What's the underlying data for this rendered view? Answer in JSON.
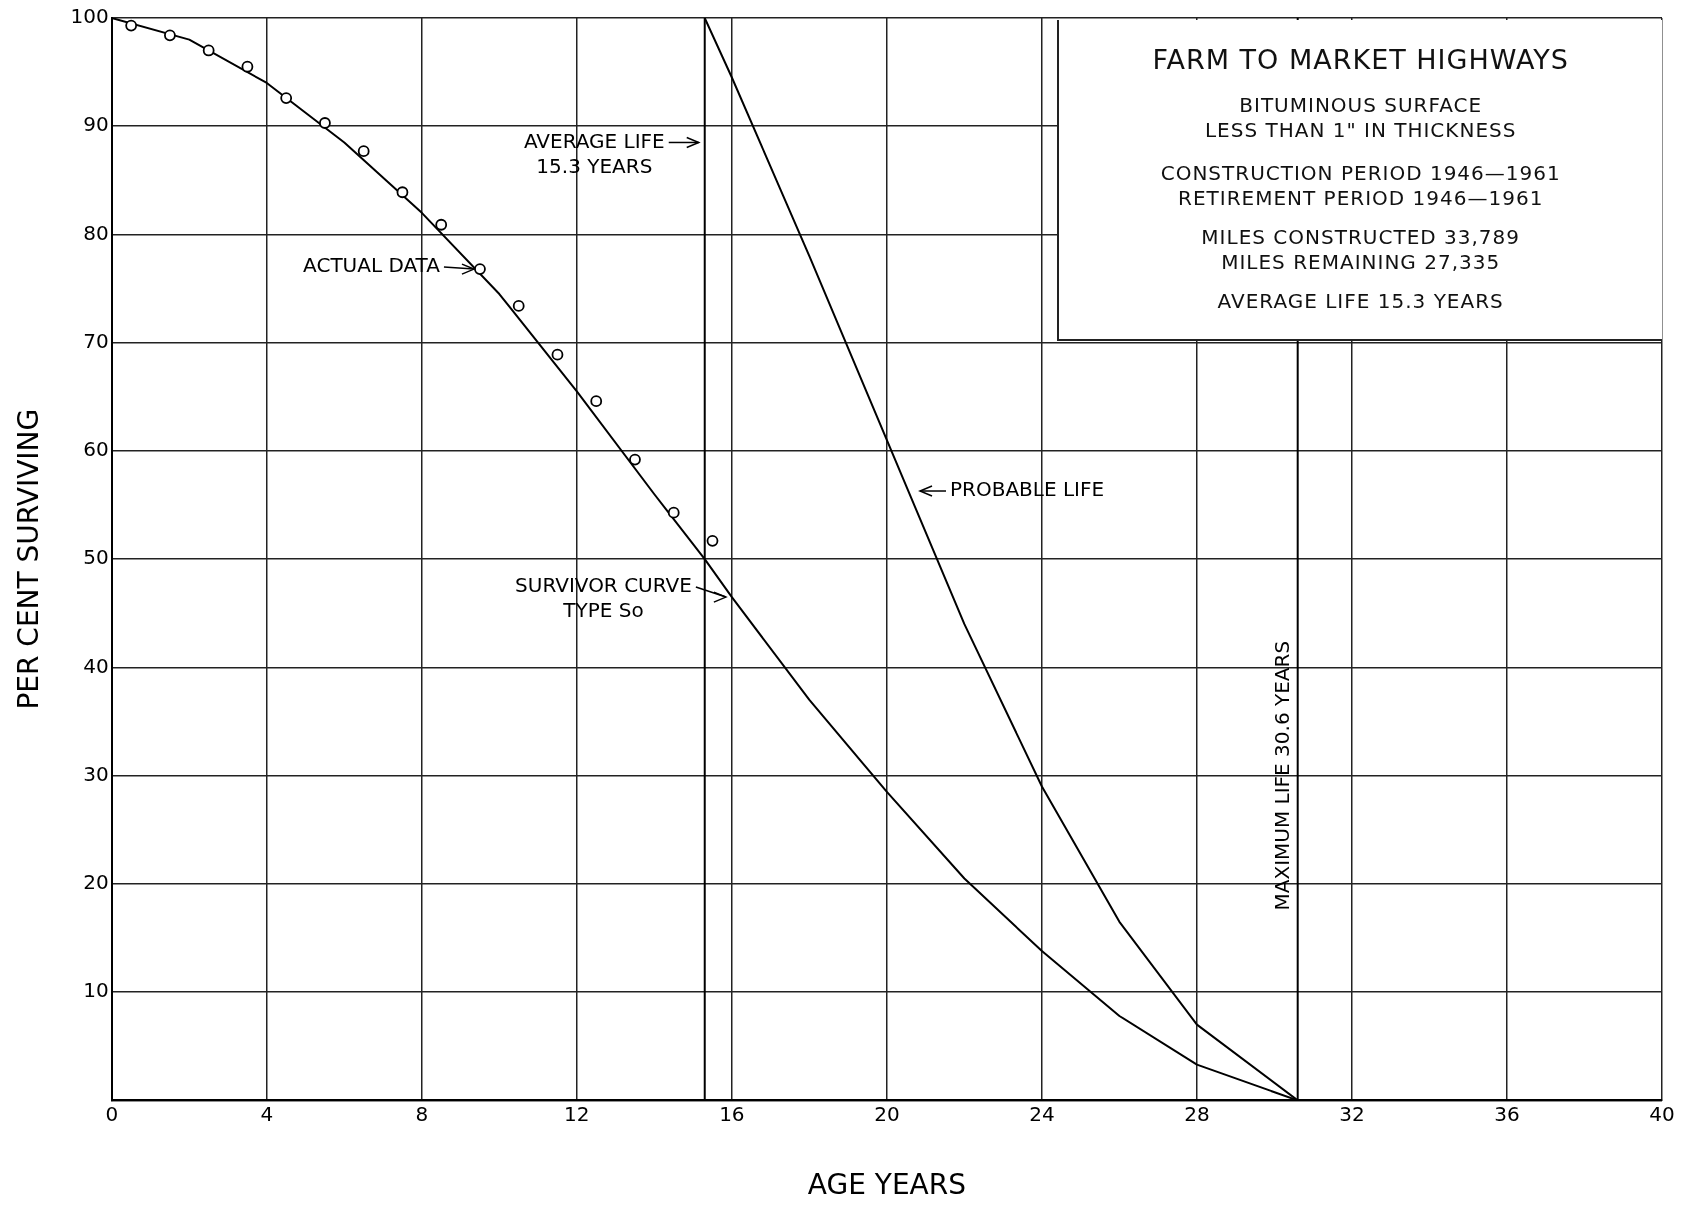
{
  "chart_data": {
    "type": "line",
    "title": "FARM TO MARKET HIGHWAYS",
    "subtitle": "BITUMINOUS SURFACE\nLESS THAN 1\" IN THICKNESS",
    "xlabel": "AGE YEARS",
    "ylabel": "PER CENT SURVIVING",
    "xlim": [
      0,
      40
    ],
    "xticks": [
      0,
      4,
      8,
      12,
      16,
      20,
      24,
      28,
      32,
      36,
      40
    ],
    "ylim": [
      0,
      100
    ],
    "yticks": [
      {
        "value": 0,
        "label": null
      },
      10,
      20,
      30,
      40,
      50,
      60,
      70,
      80,
      90,
      100
    ],
    "grid": true,
    "legend": false,
    "series": [
      {
        "type": "scatter",
        "marker": "circle",
        "color": "#000000",
        "x": [
          0.5,
          1.5,
          2.5,
          3.5,
          4.5,
          5.5,
          6.5,
          7.5,
          8.5,
          9.5,
          10.5,
          11.5,
          12.5,
          13.5,
          14.5,
          15.5
        ],
        "values": [
          99.3,
          98.4,
          97.0,
          95.5,
          92.6,
          90.3,
          87.7,
          83.9,
          80.9,
          76.8,
          73.4,
          68.9,
          64.6,
          59.2,
          54.3,
          51.7
        ]
      },
      {
        "type": "line",
        "marker": "none",
        "line_style": "solid",
        "color": "#000000",
        "x": [
          0,
          2,
          4,
          6,
          8,
          10,
          12,
          14,
          15.3,
          16,
          18,
          20,
          22,
          24,
          26,
          28,
          30.6
        ],
        "values": [
          100,
          98,
          94,
          88.5,
          82,
          74.5,
          65.5,
          56,
          50,
          46.5,
          37,
          28.5,
          20.5,
          13.8,
          7.8,
          3.3,
          0
        ]
      },
      {
        "type": "line",
        "marker": "none",
        "line_style": "solid",
        "color": "#000000",
        "x": [
          15.3,
          16,
          18,
          20,
          22,
          24,
          26,
          28,
          30.6
        ],
        "values": [
          100,
          94.5,
          78,
          61,
          44,
          29,
          16.5,
          7,
          0
        ]
      }
    ],
    "ref_lines": [
      {
        "axis": "x",
        "value": 15.3,
        "label": null,
        "color": "#000000"
      },
      {
        "axis": "x",
        "value": 30.6,
        "label": "MAXIMUM LIFE 30.6 YEARS",
        "color": "#000000"
      }
    ],
    "annotations": [
      {
        "text": "AVERAGE LIFE\n15.3 YEARS",
        "x": 15.3,
        "y": 88.5
      },
      {
        "text": "ACTUAL DATA",
        "x": 9.5,
        "y": 76.8
      },
      {
        "text": "SURVIVOR CURVE\nTYPE So",
        "x": 16,
        "y": 46.5
      },
      {
        "text": "PROBABLE LIFE",
        "x": 20.7,
        "y": 56.3
      },
      "CONSTRUCTION PERIOD 1946—1961",
      "RETIREMENT PERIOD 1946—1961",
      "MILES CONSTRUCTED 33,789",
      "MILES REMAINING 27,335",
      "AVERAGE LIFE 15.3 YEARS"
    ]
  }
}
